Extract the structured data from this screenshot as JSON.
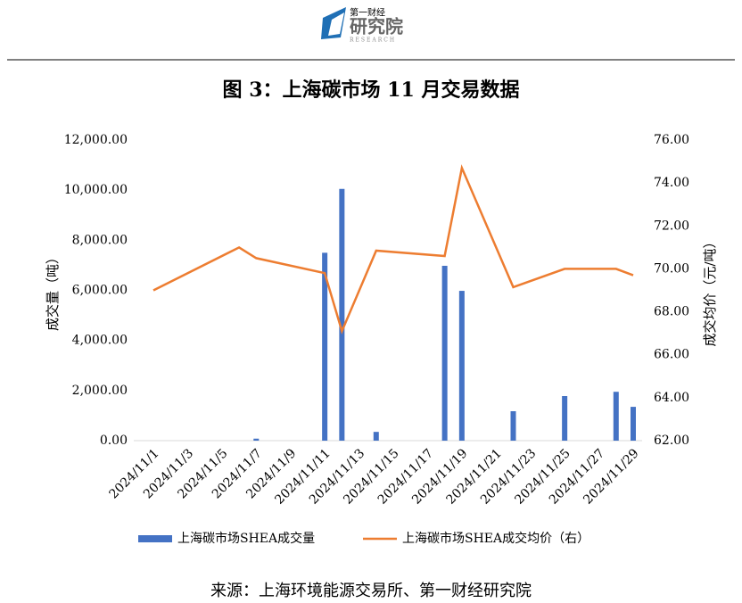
{
  "header": {
    "logo_top": "第一财经",
    "logo_main": "研究院",
    "logo_sub": "RESEARCH"
  },
  "chart_data": {
    "type": "bar-line",
    "title": "图 3：上海碳市场 11 月交易数据",
    "x": [
      "2024/11/1",
      "2024/11/6",
      "2024/11/7",
      "2024/11/11",
      "2024/11/12",
      "2024/11/14",
      "2024/11/18",
      "2024/11/19",
      "2024/11/22",
      "2024/11/25",
      "2024/11/28",
      "2024/11/29"
    ],
    "series": [
      {
        "name": "上海碳市场SHEA成交量",
        "type": "bar",
        "color": "#4472c4",
        "values": [
          0,
          0,
          80,
          7500,
          10050,
          350,
          6980,
          5980,
          1175,
          1780,
          1950,
          1350
        ]
      },
      {
        "name": "上海碳市场SHEA成交均价（右）",
        "type": "line",
        "axis": "y2",
        "color": "#ed7d31",
        "values": [
          69.0,
          71.0,
          70.5,
          69.8,
          67.1,
          70.85,
          70.6,
          74.7,
          69.15,
          70.0,
          70.0,
          69.7
        ]
      }
    ],
    "xticks": [
      "2024/11/1",
      "2024/11/3",
      "2024/11/5",
      "2024/11/7",
      "2024/11/9",
      "2024/11/11",
      "2024/11/13",
      "2024/11/15",
      "2024/11/17",
      "2024/11/19",
      "2024/11/21",
      "2024/11/23",
      "2024/11/25",
      "2024/11/27",
      "2024/11/29"
    ],
    "ylabel": "成交量（吨）",
    "y2label": "成交均价（元/吨）",
    "ylim": [
      0,
      12000
    ],
    "yticks": [
      {
        "value": 0,
        "label": "0.00"
      },
      {
        "value": 2000,
        "label": "2,000.00"
      },
      {
        "value": 4000,
        "label": "4,000.00"
      },
      {
        "value": 6000,
        "label": "6,000.00"
      },
      {
        "value": 8000,
        "label": "8,000.00"
      },
      {
        "value": 10000,
        "label": "10,000.00"
      },
      {
        "value": 12000,
        "label": "12,000.00"
      }
    ],
    "y2lim": [
      62,
      76
    ],
    "y2ticks": [
      {
        "value": 62,
        "label": "62.00"
      },
      {
        "value": 64,
        "label": "64.00"
      },
      {
        "value": 66,
        "label": "66.00"
      },
      {
        "value": 68,
        "label": "68.00"
      },
      {
        "value": 70,
        "label": "70.00"
      },
      {
        "value": 72,
        "label": "72.00"
      },
      {
        "value": 74,
        "label": "74.00"
      },
      {
        "value": 76,
        "label": "76.00"
      }
    ]
  },
  "source": "来源：上海环境能源交易所、第一财经研究院"
}
